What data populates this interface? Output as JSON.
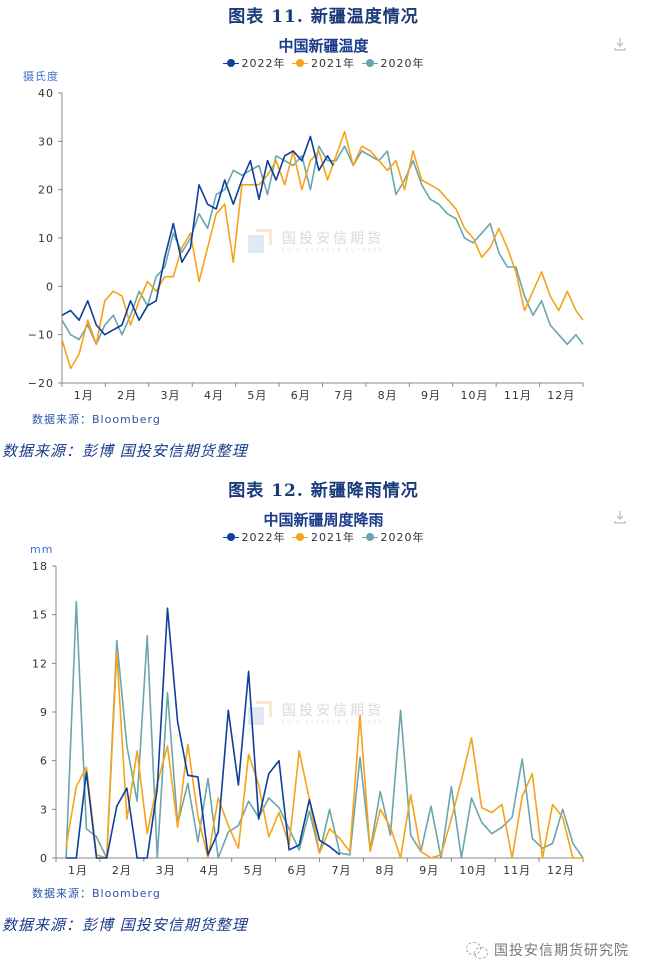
{
  "figure1": {
    "figure_title": "图表 11.  新疆温度情况",
    "chart_title": "中国新疆温度",
    "unit": "摄氏度",
    "source": "数据来源：Bloomberg",
    "note": "数据来源：彭博   国投安信期货整理"
  },
  "figure2": {
    "figure_title": "图表 12.  新疆降雨情况",
    "chart_title": "中国新疆周度降雨",
    "unit": "mm",
    "source": "数据来源：Bloomberg",
    "note": "数据来源：彭博   国投安信期货整理"
  },
  "legend": [
    {
      "label": "2022年",
      "color": "#0f3f9b"
    },
    {
      "label": "2021年",
      "color": "#f5a31a"
    },
    {
      "label": "2020年",
      "color": "#6aa6ac"
    }
  ],
  "watermark": {
    "cn": "国投安信期货",
    "en": "SDIC ESSENCE FUTURES"
  },
  "brand": {
    "label": "国投安信期货研究院"
  },
  "download_icon": "download-icon",
  "chart_data": [
    {
      "type": "line",
      "title": "中国新疆温度",
      "xlabel": "",
      "ylabel": "摄氏度",
      "ylim": [
        -20,
        40
      ],
      "yticks": [
        40,
        30,
        20,
        10,
        0,
        -10,
        -20
      ],
      "categories": [
        "1月",
        "2月",
        "3月",
        "4月",
        "5月",
        "6月",
        "7月",
        "8月",
        "9月",
        "10月",
        "11月",
        "12月"
      ],
      "legend_position": "top",
      "grid": false,
      "x_unit": "approx. day-of-year sampled every ~6 days (0-365)",
      "series": [
        {
          "name": "2022年",
          "color": "#0f3f9b",
          "x": [
            0,
            6,
            12,
            18,
            24,
            30,
            36,
            42,
            48,
            54,
            60,
            66,
            72,
            78,
            84,
            90,
            96,
            102,
            108,
            114,
            120,
            126,
            132,
            138,
            144,
            150,
            156,
            162,
            168,
            174,
            180,
            186,
            190
          ],
          "values": [
            -6,
            -5,
            -7,
            -3,
            -8,
            -10,
            -9,
            -8,
            -3,
            -7,
            -4,
            -3,
            6,
            13,
            5,
            8,
            21,
            17,
            16,
            22,
            17,
            22,
            26,
            18,
            26,
            22,
            27,
            28,
            26,
            31,
            24,
            27,
            25
          ]
        },
        {
          "name": "2021年",
          "color": "#f5a31a",
          "x": [
            0,
            6,
            12,
            18,
            24,
            30,
            36,
            42,
            48,
            54,
            60,
            66,
            72,
            78,
            84,
            90,
            96,
            102,
            108,
            114,
            120,
            126,
            132,
            138,
            144,
            150,
            156,
            162,
            168,
            174,
            180,
            186,
            192,
            198,
            204,
            210,
            216,
            222,
            228,
            234,
            240,
            246,
            252,
            258,
            264,
            270,
            276,
            282,
            288,
            294,
            300,
            306,
            312,
            318,
            324,
            330,
            336,
            342,
            348,
            354,
            360,
            365
          ],
          "values": [
            -11,
            -17,
            -14,
            -7,
            -12,
            -3,
            -1,
            -2,
            -8,
            -3,
            1,
            -1,
            2,
            2,
            8,
            11,
            1,
            8,
            15,
            17,
            5,
            21,
            21,
            21,
            23,
            26,
            21,
            28,
            20,
            26,
            28,
            22,
            27,
            32,
            25,
            29,
            28,
            26,
            24,
            26,
            20,
            28,
            22,
            21,
            20,
            18,
            16,
            12,
            10,
            6,
            8,
            12,
            8,
            3,
            -5,
            -1,
            3,
            -2,
            -5,
            -1,
            -5,
            -7
          ]
        },
        {
          "name": "2020年",
          "color": "#6aa6ac",
          "x": [
            0,
            6,
            12,
            18,
            24,
            30,
            36,
            42,
            48,
            54,
            60,
            66,
            72,
            78,
            84,
            90,
            96,
            102,
            108,
            114,
            120,
            126,
            132,
            138,
            144,
            150,
            156,
            162,
            168,
            174,
            180,
            186,
            192,
            198,
            204,
            210,
            216,
            222,
            228,
            234,
            240,
            246,
            252,
            258,
            264,
            270,
            276,
            282,
            288,
            294,
            300,
            306,
            312,
            318,
            324,
            330,
            336,
            342,
            348,
            354,
            360,
            365
          ],
          "values": [
            -7,
            -10,
            -11,
            -8,
            -12,
            -8,
            -6,
            -10,
            -6,
            -1,
            -4,
            2,
            4,
            11,
            7,
            10,
            15,
            12,
            19,
            20,
            24,
            23,
            24,
            25,
            19,
            27,
            26,
            25,
            27,
            20,
            29,
            26,
            26,
            29,
            25,
            28,
            27,
            26,
            28,
            19,
            22,
            26,
            21,
            18,
            17,
            15,
            14,
            10,
            9,
            11,
            13,
            7,
            4,
            4,
            -2,
            -6,
            -3,
            -8,
            -10,
            -12,
            -10,
            -12
          ]
        }
      ]
    },
    {
      "type": "line",
      "title": "中国新疆周度降雨",
      "xlabel": "",
      "ylabel": "mm",
      "ylim": [
        0,
        18
      ],
      "yticks": [
        18,
        15,
        12,
        9,
        6,
        3,
        0
      ],
      "categories": [
        "1月",
        "2月",
        "3月",
        "4月",
        "5月",
        "6月",
        "7月",
        "8月",
        "9月",
        "10月",
        "11月",
        "12月"
      ],
      "legend_position": "top",
      "grid": false,
      "x_unit": "week number (1-52)",
      "series": [
        {
          "name": "2022年",
          "color": "#0f3f9b",
          "x": [
            1,
            2,
            3,
            4,
            5,
            6,
            7,
            8,
            9,
            10,
            11,
            12,
            13,
            14,
            15,
            16,
            17,
            18,
            19,
            20,
            21,
            22,
            23,
            24,
            25,
            26,
            27,
            28
          ],
          "values": [
            0,
            0,
            5.3,
            0,
            0,
            3.2,
            4.3,
            0,
            0,
            4.3,
            15.4,
            8.4,
            5.1,
            5.0,
            0.2,
            1.6,
            9.1,
            4.5,
            11.5,
            2.4,
            5.2,
            6.0,
            0.5,
            0.8,
            3.6,
            1.1,
            0.7,
            0.2
          ]
        },
        {
          "name": "2021年",
          "color": "#f5a31a",
          "x": [
            1,
            2,
            3,
            4,
            5,
            6,
            7,
            8,
            9,
            10,
            11,
            12,
            13,
            14,
            15,
            16,
            17,
            18,
            19,
            20,
            21,
            22,
            23,
            24,
            25,
            26,
            27,
            28,
            29,
            30,
            31,
            32,
            33,
            34,
            35,
            36,
            37,
            38,
            39,
            40,
            41,
            42,
            43,
            44,
            45,
            46,
            47,
            48,
            49,
            50,
            51,
            52
          ],
          "values": [
            0.7,
            4.4,
            5.6,
            0.2,
            0,
            12.7,
            2.4,
            6.6,
            1.5,
            4.6,
            6.9,
            1.9,
            7.0,
            2.6,
            0,
            3.7,
            2.0,
            0.6,
            6.4,
            4.5,
            1.3,
            2.8,
            0.8,
            6.6,
            3.6,
            0.3,
            1.8,
            1.2,
            0.4,
            8.8,
            0.4,
            3.0,
            1.9,
            0,
            3.9,
            0.4,
            0,
            0.2,
            2.4,
            4.8,
            7.4,
            3.1,
            2.8,
            3.3,
            0,
            3.8,
            5.2,
            0,
            3.3,
            2.5,
            0,
            0
          ]
        },
        {
          "name": "2020年",
          "color": "#6aa6ac",
          "x": [
            1,
            2,
            3,
            4,
            5,
            6,
            7,
            8,
            9,
            10,
            11,
            12,
            13,
            14,
            15,
            16,
            17,
            18,
            19,
            20,
            21,
            22,
            23,
            24,
            25,
            26,
            27,
            28,
            29,
            30,
            31,
            32,
            33,
            34,
            35,
            36,
            37,
            38,
            39,
            40,
            41,
            42,
            43,
            44,
            45,
            46,
            47,
            48,
            49,
            50,
            51,
            52
          ],
          "values": [
            0,
            15.8,
            1.8,
            1.3,
            0,
            13.4,
            6.9,
            3.5,
            13.7,
            0,
            10.2,
            2.1,
            4.6,
            1.0,
            4.9,
            0,
            1.6,
            2.0,
            3.5,
            2.5,
            3.7,
            3.1,
            1.8,
            0.5,
            2.9,
            0.3,
            3.0,
            0.3,
            0.2,
            6.2,
            0.5,
            4.1,
            1.4,
            9.1,
            1.4,
            0.4,
            3.2,
            0,
            4.4,
            0,
            3.7,
            2.2,
            1.5,
            1.9,
            2.5,
            6.1,
            1.2,
            0.6,
            0.9,
            3.0,
            0.9,
            0
          ]
        }
      ]
    }
  ]
}
